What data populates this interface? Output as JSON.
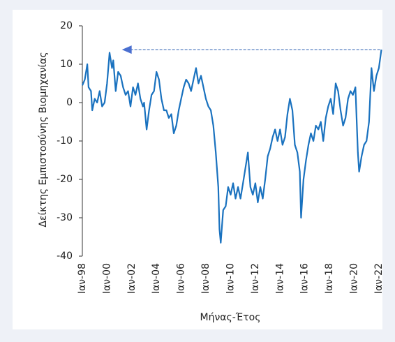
{
  "chart_data": {
    "type": "line",
    "x_label": "Μήνας-Έτος",
    "y_label": "Δείκτης Εμπιστοσύνης Βιομηχανίας",
    "x": [
      1998.0,
      1998.2,
      1998.4,
      1998.5,
      1998.7,
      1998.8,
      1999.0,
      1999.2,
      1999.4,
      1999.6,
      1999.8,
      2000.0,
      2000.2,
      2000.4,
      2000.5,
      2000.7,
      2000.9,
      2001.1,
      2001.3,
      2001.5,
      2001.7,
      2001.9,
      2002.1,
      2002.3,
      2002.5,
      2002.7,
      2002.9,
      2003.0,
      2003.2,
      2003.4,
      2003.6,
      2003.8,
      2004.0,
      2004.2,
      2004.4,
      2004.6,
      2004.8,
      2005.0,
      2005.2,
      2005.4,
      2005.6,
      2005.8,
      2006.0,
      2006.2,
      2006.4,
      2006.6,
      2006.8,
      2007.0,
      2007.2,
      2007.4,
      2007.6,
      2007.8,
      2008.0,
      2008.2,
      2008.4,
      2008.6,
      2008.8,
      2009.0,
      2009.1,
      2009.2,
      2009.4,
      2009.6,
      2009.8,
      2010.0,
      2010.2,
      2010.4,
      2010.6,
      2010.8,
      2011.0,
      2011.2,
      2011.4,
      2011.6,
      2011.8,
      2012.0,
      2012.2,
      2012.4,
      2012.6,
      2012.8,
      2013.0,
      2013.2,
      2013.4,
      2013.6,
      2013.8,
      2014.0,
      2014.2,
      2014.4,
      2014.6,
      2014.8,
      2015.0,
      2015.2,
      2015.4,
      2015.6,
      2015.7,
      2015.9,
      2016.1,
      2016.3,
      2016.5,
      2016.7,
      2016.9,
      2017.1,
      2017.3,
      2017.5,
      2017.7,
      2017.9,
      2018.1,
      2018.3,
      2018.5,
      2018.7,
      2018.9,
      2019.1,
      2019.3,
      2019.5,
      2019.7,
      2019.9,
      2020.1,
      2020.3,
      2020.4,
      2020.6,
      2020.8,
      2021.0,
      2021.2,
      2021.4,
      2021.6,
      2021.8,
      2022.0,
      2022.2
    ],
    "series": [
      {
        "color": "#1a72bf",
        "values": [
          4.5,
          6,
          10,
          4,
          3,
          -2,
          1,
          0,
          3,
          -1,
          0,
          5,
          13,
          9,
          11,
          3,
          8,
          7,
          4,
          2,
          3,
          -1,
          4,
          2,
          5,
          1,
          -1,
          0,
          -7,
          -2,
          2,
          3,
          8,
          6,
          1,
          -2,
          -2,
          -4,
          -3,
          -8,
          -6,
          -2,
          1,
          4,
          6,
          5,
          3,
          6,
          9,
          5,
          7,
          4,
          1,
          -1,
          -2,
          -6,
          -13,
          -22,
          -33,
          -36.5,
          -28,
          -27,
          -22,
          -24,
          -21,
          -25,
          -22,
          -25,
          -21,
          -17,
          -13,
          -22,
          -24,
          -21,
          -26,
          -22,
          -25,
          -20,
          -14,
          -12,
          -9,
          -7,
          -10,
          -7,
          -11,
          -9,
          -3,
          1,
          -2,
          -11,
          -13,
          -18,
          -30,
          -20,
          -15,
          -11,
          -8,
          -10,
          -6,
          -7,
          -5,
          -10,
          -4,
          -1,
          1,
          -3,
          5,
          3,
          -2,
          -6,
          -4,
          1,
          3,
          2,
          4,
          -13,
          -18,
          -14,
          -11,
          -10,
          -5,
          9,
          3,
          7,
          9,
          13.8
        ]
      }
    ],
    "reference_line": {
      "value": 13.8,
      "x": [
        2001.2,
        2022.2
      ],
      "color": "#2a5db0"
    },
    "xlim": [
      1998,
      2022.4
    ],
    "ylim": [
      -40,
      20
    ],
    "yticks": [
      -40,
      -30,
      -20,
      -10,
      0,
      10,
      20
    ],
    "xticks": [
      {
        "value": 1998,
        "label": "Ιαν-98"
      },
      {
        "value": 2000,
        "label": "Ιαν-00"
      },
      {
        "value": 2002,
        "label": "Ιαν-02"
      },
      {
        "value": 2004,
        "label": "Ιαν-04"
      },
      {
        "value": 2006,
        "label": "Ιαν-06"
      },
      {
        "value": 2008,
        "label": "Ιαν-08"
      },
      {
        "value": 2010,
        "label": "Ιαν-10"
      },
      {
        "value": 2012,
        "label": "Ιαν-12"
      },
      {
        "value": 2014,
        "label": "Ιαν-14"
      },
      {
        "value": 2016,
        "label": "Ιαν-16"
      },
      {
        "value": 2018,
        "label": "Ιαν-18"
      },
      {
        "value": 2020,
        "label": "Ιαν-20"
      },
      {
        "value": 2022,
        "label": "Ιαν-22"
      }
    ]
  }
}
